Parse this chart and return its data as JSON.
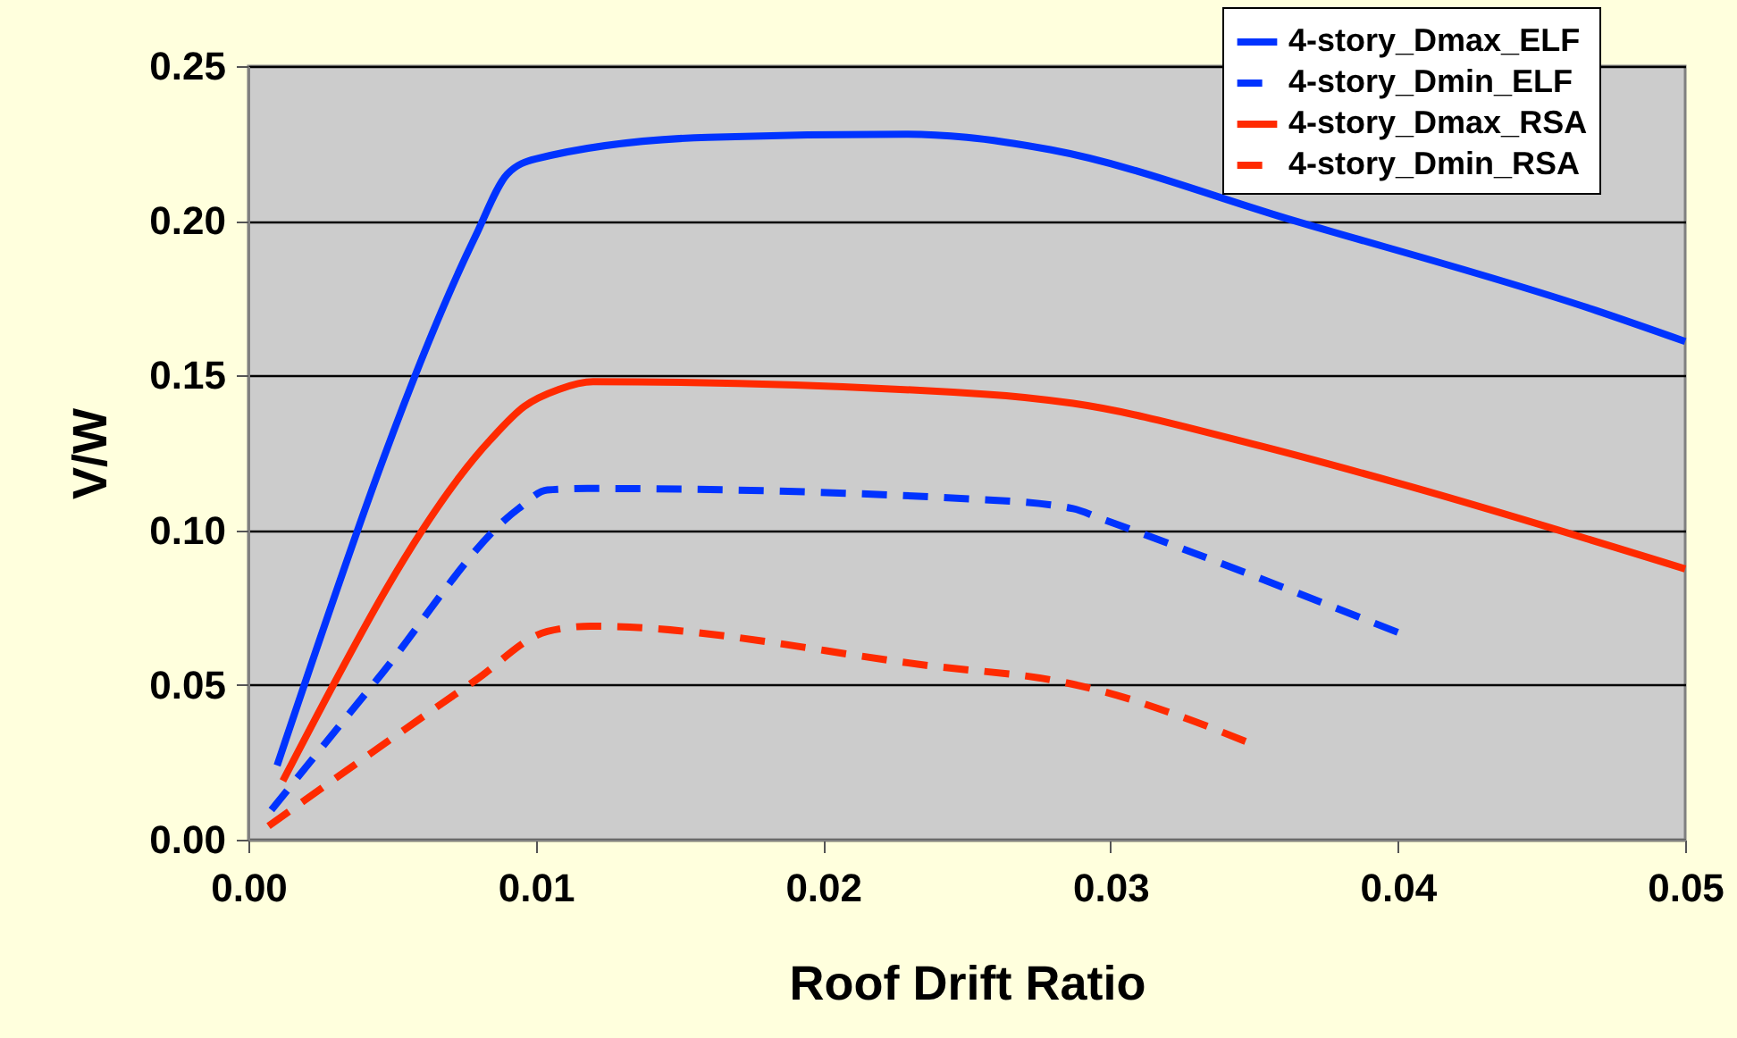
{
  "chart_data": {
    "type": "line",
    "xlabel": "Roof Drift Ratio",
    "ylabel": "V/W",
    "xlim": [
      0,
      0.05
    ],
    "ylim": [
      0,
      0.25
    ],
    "xticks": [
      {
        "value": 0,
        "label": "0.00"
      },
      {
        "value": 0.01,
        "label": "0.01"
      },
      {
        "value": 0.02,
        "label": "0.02"
      },
      {
        "value": 0.03,
        "label": "0.03"
      },
      {
        "value": 0.04,
        "label": "0.04"
      },
      {
        "value": 0.05,
        "label": "0.05"
      }
    ],
    "yticks": [
      {
        "value": 0,
        "label": "0.00"
      },
      {
        "value": 0.05,
        "label": "0.05"
      },
      {
        "value": 0.1,
        "label": "0.10"
      },
      {
        "value": 0.15,
        "label": "0.15"
      },
      {
        "value": 0.2,
        "label": "0.20"
      },
      {
        "value": 0.25,
        "label": "0.25"
      }
    ],
    "grid": "y",
    "legend": "top right",
    "marker": "none",
    "series": [
      {
        "name": "4-story_Dmax_ELF",
        "color": "#0033ff",
        "line_style": "solid",
        "x": [
          0.001,
          0.0079,
          0.009,
          0.01,
          0.016,
          0.0229,
          0.025,
          0.0279,
          0.0364,
          0.0469,
          0.05
        ],
        "values": [
          0.024,
          0.195,
          0.215,
          0.22,
          0.227,
          0.228,
          0.227,
          0.223,
          0.2,
          0.171,
          0.161
        ]
      },
      {
        "name": "4-story_Dmin_ELF",
        "color": "#0033ff",
        "line_style": "dashed",
        "x": [
          0.0008,
          0.0045,
          0.0094,
          0.0104,
          0.0118,
          0.0254,
          0.0287,
          0.0296,
          0.04
        ],
        "values": [
          0.0096,
          0.052,
          0.107,
          0.113,
          0.1135,
          0.11,
          0.107,
          0.104,
          0.067
        ]
      },
      {
        "name": "4-story_Dmax_RSA",
        "color": "#ff2a00",
        "line_style": "solid",
        "x": [
          0.0012,
          0.0084,
          0.0096,
          0.0108,
          0.012,
          0.0256,
          0.0287,
          0.0349,
          0.0401,
          0.05
        ],
        "values": [
          0.019,
          0.129,
          0.14,
          0.1455,
          0.148,
          0.144,
          0.141,
          0.128,
          0.115,
          0.0875
        ]
      },
      {
        "name": "4-story_Dmin_RSA",
        "color": "#ff2a00",
        "line_style": "dashed",
        "x": [
          0.0007,
          0.0079,
          0.0104,
          0.0119,
          0.0239,
          0.0283,
          0.0297,
          0.0324,
          0.0349
        ],
        "values": [
          0.0044,
          0.0515,
          0.0673,
          0.069,
          0.056,
          0.051,
          0.048,
          0.04,
          0.031
        ]
      }
    ]
  }
}
